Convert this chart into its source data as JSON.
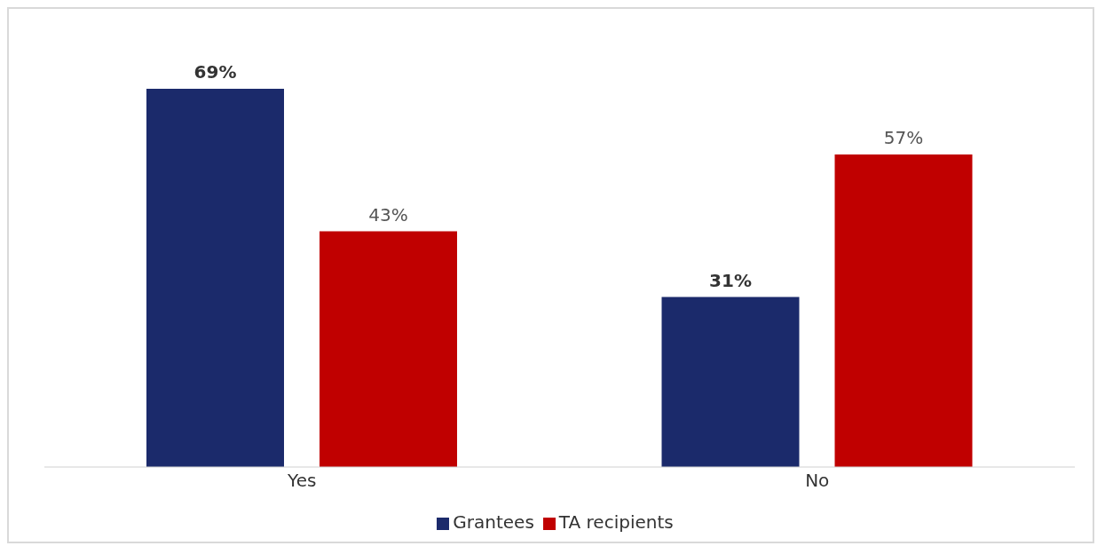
{
  "chart_data": {
    "type": "bar",
    "categories": [
      "Yes",
      "No"
    ],
    "series": [
      {
        "name": "Grantees",
        "color": "#1b2a6b",
        "values": [
          69,
          31
        ],
        "value_labels": [
          "69%",
          "31%"
        ]
      },
      {
        "name": "TA recipients",
        "color": "#c00000",
        "values": [
          43,
          57
        ],
        "value_labels": [
          "43%",
          "57%"
        ]
      }
    ],
    "legend": "bottom",
    "grid": false
  }
}
